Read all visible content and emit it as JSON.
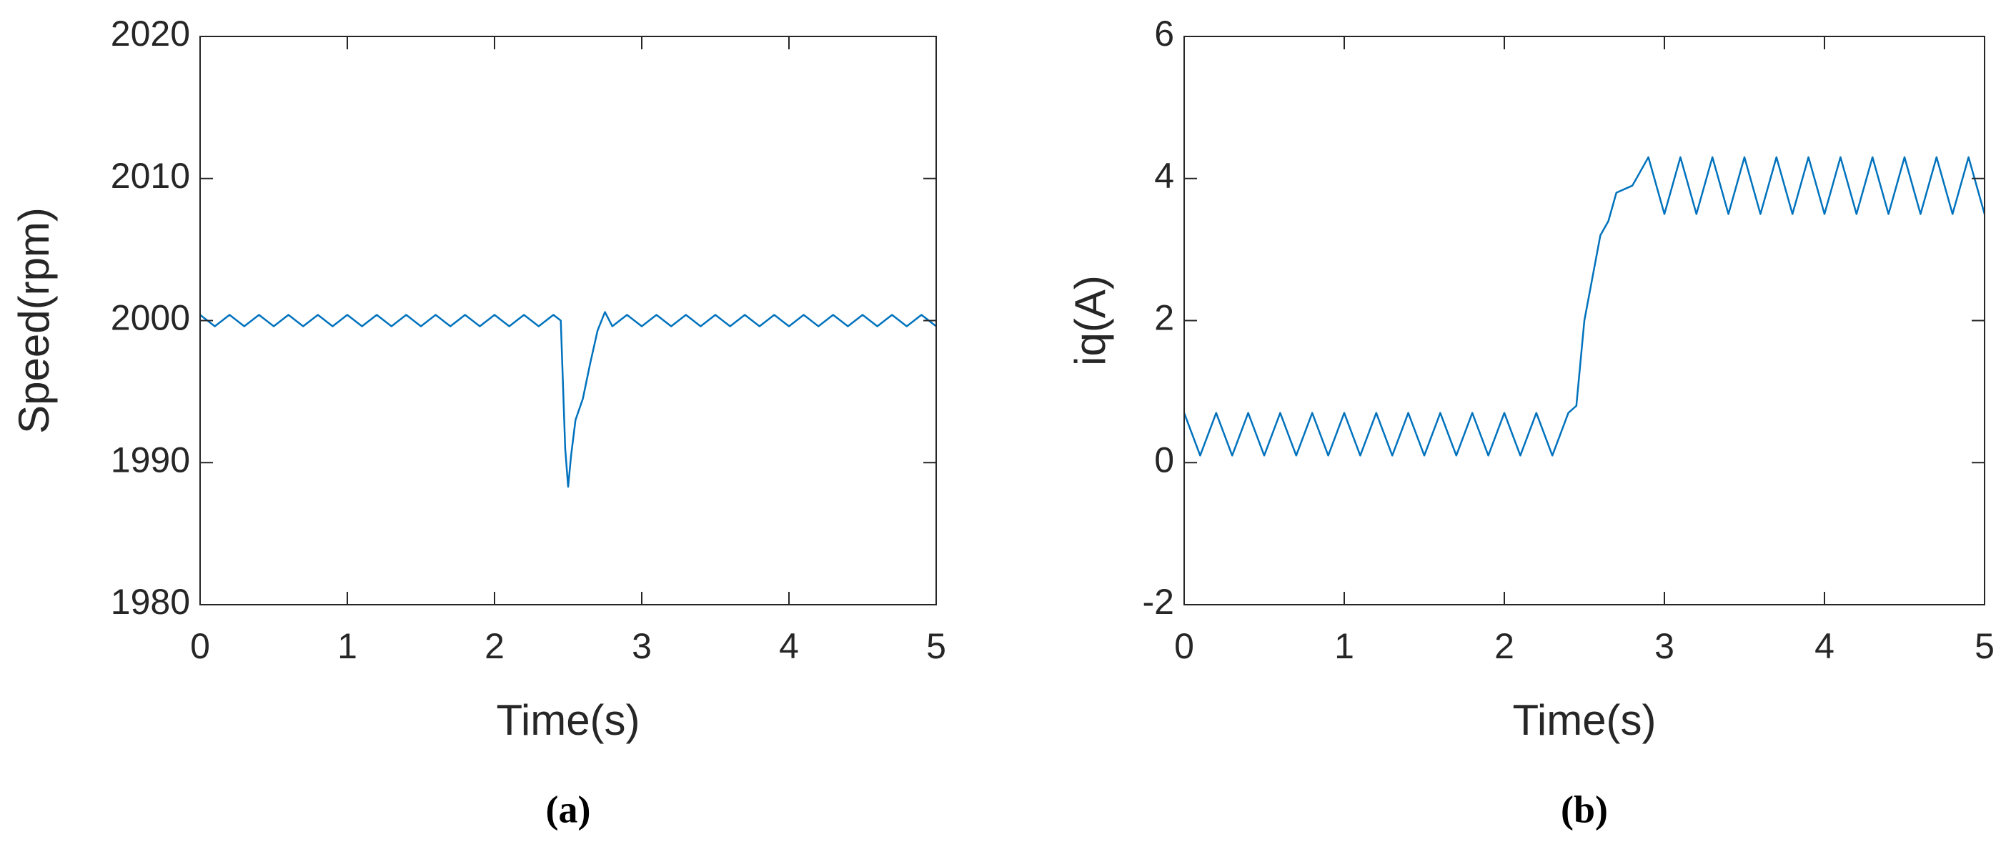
{
  "chart_data": [
    {
      "type": "line",
      "label": "(a)",
      "xlabel": "Time(s)",
      "ylabel": "Speed(rpm)",
      "xlim": [
        0,
        5
      ],
      "xticks": [
        0,
        1,
        2,
        3,
        4,
        5
      ],
      "ylim": [
        1980,
        2020
      ],
      "yticks": [
        1980,
        1990,
        2000,
        2010,
        2020
      ],
      "series": [
        {
          "color": "#0072bd",
          "x": [
            0,
            0.1,
            0.2,
            0.3,
            0.4,
            0.5,
            0.6,
            0.7,
            0.8,
            0.9,
            1.0,
            1.1,
            1.2,
            1.3,
            1.4,
            1.5,
            1.6,
            1.7,
            1.8,
            1.9,
            2.0,
            2.1,
            2.2,
            2.3,
            2.4,
            2.45,
            2.48,
            2.5,
            2.52,
            2.55,
            2.6,
            2.65,
            2.7,
            2.75,
            2.8,
            2.9,
            3.0,
            3.1,
            3.2,
            3.3,
            3.4,
            3.5,
            3.6,
            3.7,
            3.8,
            3.9,
            4.0,
            4.1,
            4.2,
            4.3,
            4.4,
            4.5,
            4.6,
            4.7,
            4.8,
            4.9,
            5.0
          ],
          "values": [
            2000.4,
            1999.6,
            2000.4,
            1999.6,
            2000.4,
            1999.6,
            2000.4,
            1999.6,
            2000.4,
            1999.6,
            2000.4,
            1999.6,
            2000.4,
            1999.6,
            2000.4,
            1999.6,
            2000.4,
            1999.6,
            2000.4,
            1999.6,
            2000.4,
            1999.6,
            2000.4,
            1999.6,
            2000.4,
            2000,
            1991,
            1988.3,
            1990.5,
            1993,
            1994.5,
            1997,
            1999.3,
            2000.6,
            1999.6,
            2000.4,
            1999.6,
            2000.4,
            1999.6,
            2000.4,
            1999.6,
            2000.4,
            1999.6,
            2000.4,
            1999.6,
            2000.4,
            1999.6,
            2000.4,
            1999.6,
            2000.4,
            1999.6,
            2000.4,
            1999.6,
            2000.4,
            1999.6,
            2000.4,
            1999.6
          ]
        }
      ]
    },
    {
      "type": "line",
      "label": "(b)",
      "xlabel": "Time(s)",
      "ylabel": "iq(A)",
      "xlim": [
        0,
        5
      ],
      "xticks": [
        0,
        1,
        2,
        3,
        4,
        5
      ],
      "ylim": [
        -2,
        6
      ],
      "yticks": [
        -2,
        0,
        2,
        4,
        6
      ],
      "series": [
        {
          "color": "#0072bd",
          "x": [
            0,
            0.1,
            0.2,
            0.3,
            0.4,
            0.5,
            0.6,
            0.7,
            0.8,
            0.9,
            1.0,
            1.1,
            1.2,
            1.3,
            1.4,
            1.5,
            1.6,
            1.7,
            1.8,
            1.9,
            2.0,
            2.1,
            2.2,
            2.3,
            2.4,
            2.45,
            2.5,
            2.55,
            2.6,
            2.65,
            2.7,
            2.8,
            2.9,
            3.0,
            3.1,
            3.2,
            3.3,
            3.4,
            3.5,
            3.6,
            3.7,
            3.8,
            3.9,
            4.0,
            4.1,
            4.2,
            4.3,
            4.4,
            4.5,
            4.6,
            4.7,
            4.8,
            4.9,
            5.0
          ],
          "values": [
            0.7,
            0.1,
            0.7,
            0.1,
            0.7,
            0.1,
            0.7,
            0.1,
            0.7,
            0.1,
            0.7,
            0.1,
            0.7,
            0.1,
            0.7,
            0.1,
            0.7,
            0.1,
            0.7,
            0.1,
            0.7,
            0.1,
            0.7,
            0.1,
            0.7,
            0.8,
            2.0,
            2.6,
            3.2,
            3.4,
            3.8,
            3.9,
            4.3,
            3.5,
            4.3,
            3.5,
            4.3,
            3.5,
            4.3,
            3.5,
            4.3,
            3.5,
            4.3,
            3.5,
            4.3,
            3.5,
            4.3,
            3.5,
            4.3,
            3.5,
            4.3,
            3.5,
            4.3,
            3.5
          ]
        }
      ]
    }
  ]
}
